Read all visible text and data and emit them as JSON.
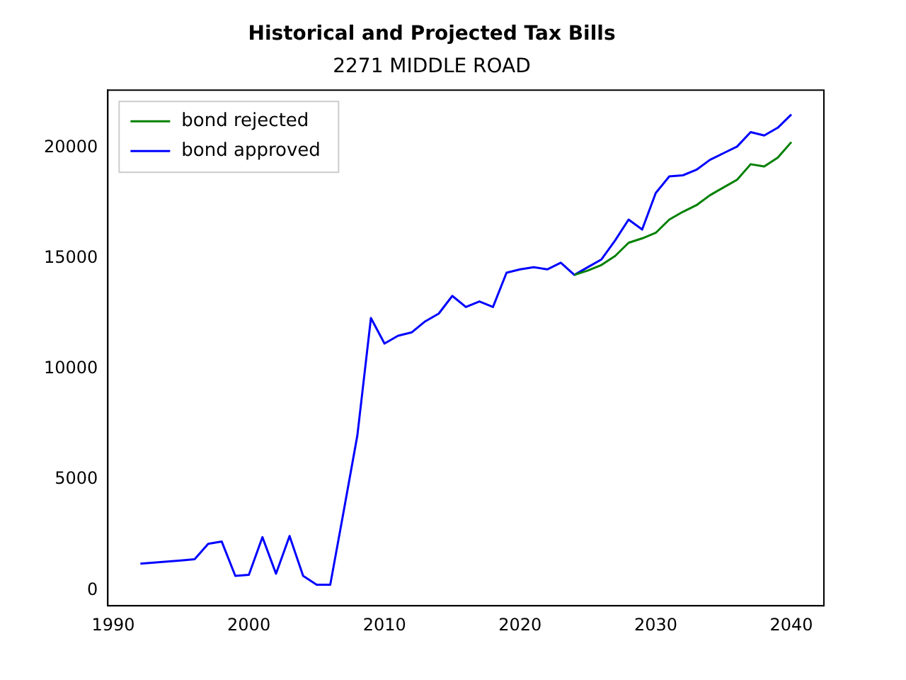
{
  "chart_data": {
    "type": "line",
    "title": "Historical and Projected Tax Bills",
    "subtitle": "2271 MIDDLE ROAD",
    "x": [
      1992,
      1993,
      1994,
      1995,
      1996,
      1997,
      1998,
      1999,
      2000,
      2001,
      2002,
      2003,
      2004,
      2005,
      2006,
      2007,
      2008,
      2009,
      2010,
      2011,
      2012,
      2013,
      2014,
      2015,
      2016,
      2017,
      2018,
      2019,
      2020,
      2021,
      2022,
      2023,
      2024,
      2025,
      2026,
      2027,
      2028,
      2029,
      2030,
      2031,
      2032,
      2033,
      2034,
      2035,
      2036,
      2037,
      2038,
      2039,
      2040
    ],
    "series": [
      {
        "name": "bond rejected",
        "color": "#008000",
        "values": [
          null,
          null,
          null,
          null,
          null,
          null,
          null,
          null,
          null,
          null,
          null,
          null,
          null,
          null,
          null,
          null,
          null,
          null,
          null,
          null,
          null,
          null,
          null,
          null,
          null,
          null,
          null,
          null,
          null,
          null,
          null,
          null,
          14250,
          14450,
          14700,
          15100,
          15700,
          15900,
          16150,
          16750,
          17100,
          17400,
          17850,
          18200,
          18550,
          19250,
          19150,
          19550,
          20250
        ]
      },
      {
        "name": "bond approved",
        "color": "#0000ff",
        "values": [
          1200,
          1250,
          1300,
          1350,
          1400,
          2100,
          2200,
          650,
          700,
          2400,
          750,
          2450,
          650,
          250,
          250,
          3600,
          7000,
          12300,
          11150,
          11500,
          11650,
          12150,
          12500,
          13300,
          12800,
          13050,
          12800,
          14350,
          14500,
          14600,
          14500,
          14800,
          14250,
          14600,
          14950,
          15800,
          16750,
          16300,
          17950,
          18700,
          18750,
          19000,
          19450,
          19750,
          20050,
          20700,
          20550,
          20900,
          21500
        ]
      }
    ],
    "xlim": [
      1989.6,
      2042.4
    ],
    "xticks": [
      1990,
      2000,
      2010,
      2020,
      2030,
      2040
    ],
    "ylim": [
      -700,
      22600
    ],
    "yticks": [
      0,
      5000,
      10000,
      15000,
      20000
    ],
    "grid": false,
    "legend": "top left",
    "marker": "none",
    "line_style": "solid"
  }
}
